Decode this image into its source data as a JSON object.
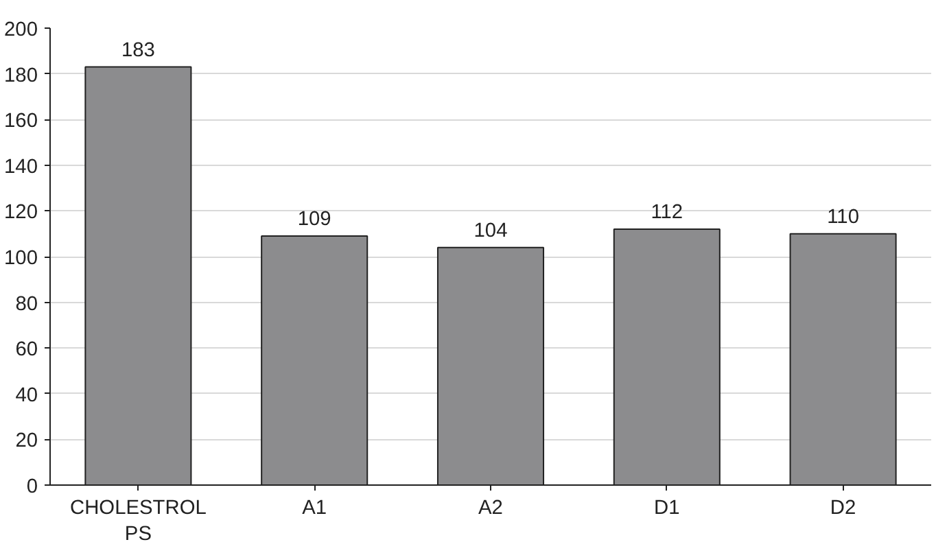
{
  "chart_data": {
    "type": "bar",
    "categories": [
      "CHOLESTROL PS",
      "A1",
      "A2",
      "D1",
      "D2"
    ],
    "values": [
      183,
      109,
      104,
      112,
      110
    ],
    "color": "#8c8c8e",
    "data_labels": true,
    "ylim": [
      0,
      200
    ],
    "yticks": [
      0,
      20,
      40,
      60,
      80,
      100,
      120,
      140,
      160,
      180,
      200
    ],
    "grid": "y"
  }
}
